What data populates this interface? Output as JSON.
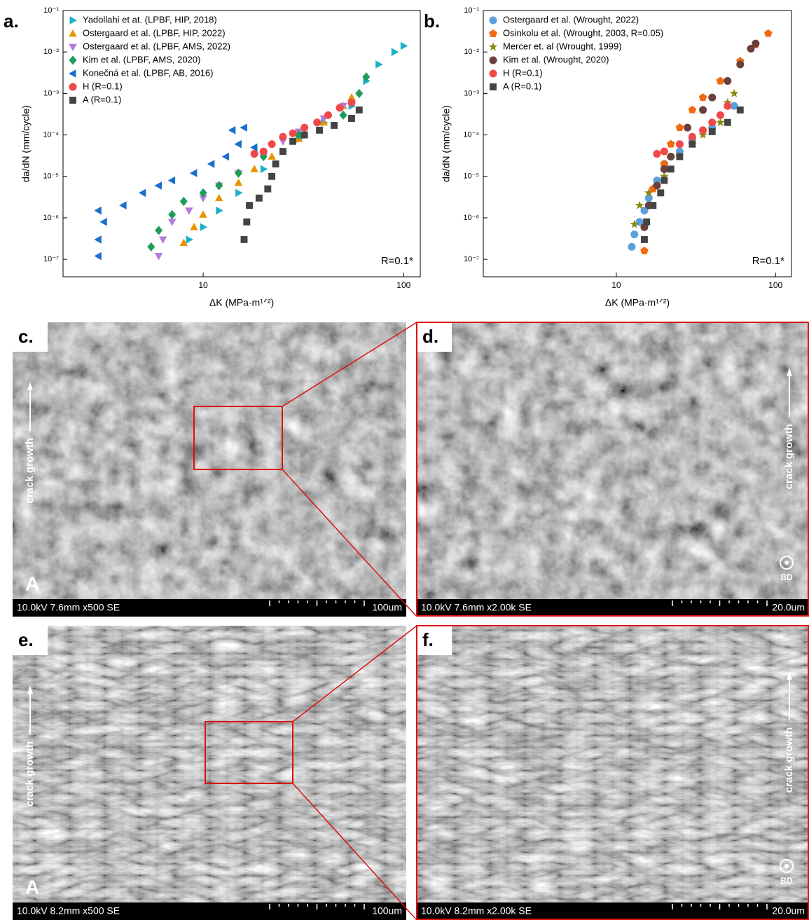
{
  "chart_data": [
    {
      "type": "scatter",
      "panel": "a.",
      "x_label": "ΔK (MPa·m¹ᐟ²)",
      "y_label": "da/dN (mm/cycle)",
      "annotation": "R=0.1*",
      "xscale": "log",
      "yscale": "log",
      "xlim": [
        2.0,
        121
      ],
      "ylim": [
        3.8e-08,
        0.1
      ],
      "xticks": [
        10,
        100
      ],
      "yticks": [
        {
          "value": 1e-07,
          "label": "10⁻⁷"
        },
        {
          "value": 1e-06,
          "label": "10⁻⁶"
        },
        {
          "value": 1e-05,
          "label": "10⁻⁵"
        },
        {
          "value": 0.0001,
          "label": "10⁻⁴"
        },
        {
          "value": 0.001,
          "label": "10⁻³"
        },
        {
          "value": 0.01,
          "label": "10⁻²"
        },
        {
          "value": 0.1,
          "label": "10⁻¹"
        }
      ],
      "legend": "upper left",
      "series": [
        {
          "name": "Yadollahi et at. (LPBF, HIP, 2018)",
          "color": "#1fb0c8",
          "marker": "triangle-right",
          "x": [
            8.5,
            10,
            12,
            15,
            20,
            25,
            30,
            40,
            55,
            65,
            75,
            90,
            100
          ],
          "values": [
            3e-07,
            6e-07,
            1.5e-06,
            4e-06,
            1.5e-05,
            4e-05,
            8e-05,
            0.0002,
            0.0005,
            0.002,
            0.005,
            0.01,
            0.014
          ]
        },
        {
          "name": "Ostergaard et al. (LPBF, HIP, 2022)",
          "color": "#e69500",
          "marker": "triangle-up",
          "x": [
            8,
            9,
            10,
            12,
            15,
            18,
            22,
            30,
            40,
            50,
            55
          ],
          "values": [
            2.5e-07,
            6e-07,
            1.2e-06,
            3e-06,
            7e-06,
            1.5e-05,
            3e-05,
            8e-05,
            0.0002,
            0.0005,
            0.0008
          ]
        },
        {
          "name": "Ostergaard et al. (LPBF, AMS, 2022)",
          "color": "#b57bdc",
          "marker": "triangle-down",
          "x": [
            6,
            6.3,
            7,
            8.5,
            10,
            12,
            15,
            20,
            25,
            30,
            40,
            50
          ],
          "values": [
            1.2e-07,
            3e-07,
            8e-07,
            1.5e-06,
            3e-06,
            6e-06,
            1.2e-05,
            3e-05,
            7e-05,
            0.00012,
            0.00025,
            0.0005
          ]
        },
        {
          "name": "Kim et al. (LPBF, AMS, 2020)",
          "color": "#1e9c5a",
          "marker": "diamond",
          "x": [
            5.5,
            6,
            7,
            8,
            10,
            12,
            15,
            20,
            30,
            50,
            60,
            65
          ],
          "values": [
            2e-07,
            5e-07,
            1.2e-06,
            2.5e-06,
            4e-06,
            6e-06,
            1.2e-05,
            3e-05,
            0.0001,
            0.0003,
            0.001,
            0.0025
          ]
        },
        {
          "name": "Konečná et al. (LPBF, AB, 2016)",
          "color": "#1a6fce",
          "marker": "triangle-left",
          "x": [
            3,
            3,
            3.2,
            3,
            4,
            5,
            6,
            7,
            9,
            11,
            13,
            15,
            16,
            14,
            18
          ],
          "values": [
            1.2e-07,
            3e-07,
            8e-07,
            1.5e-06,
            2e-06,
            4e-06,
            6e-06,
            8e-06,
            1.2e-05,
            2e-05,
            3e-05,
            6e-05,
            0.00015,
            0.00013,
            5e-05
          ]
        },
        {
          "name": "H (R=0.1)",
          "color": "#f04848",
          "marker": "circle",
          "x": [
            18,
            20,
            22,
            25,
            28,
            32,
            37,
            42,
            48,
            55
          ],
          "values": [
            3.5e-05,
            4e-05,
            6e-05,
            9e-05,
            0.00011,
            0.00015,
            0.0002,
            0.0003,
            0.00045,
            0.0006
          ]
        },
        {
          "name": "A (R=0.1)",
          "color": "#444444",
          "marker": "square",
          "x": [
            16,
            16.5,
            17,
            19,
            21,
            22,
            23,
            25,
            28,
            32,
            38,
            45,
            55,
            60
          ],
          "values": [
            3e-07,
            8e-07,
            2e-06,
            3e-06,
            5e-06,
            1e-05,
            2e-05,
            4e-05,
            7e-05,
            0.0001,
            0.00013,
            0.00017,
            0.00025,
            0.0004
          ]
        }
      ]
    },
    {
      "type": "scatter",
      "panel": "b.",
      "x_label": "ΔK (MPa·m¹ᐟ²)",
      "y_label": "da/dN (mm/cycle)",
      "annotation": "R=0.1*",
      "xscale": "log",
      "yscale": "log",
      "xlim": [
        1.46,
        126
      ],
      "ylim": [
        3.8e-08,
        0.1
      ],
      "xticks": [
        10,
        100
      ],
      "yticks": [
        {
          "value": 1e-07,
          "label": "10⁻⁷"
        },
        {
          "value": 1e-06,
          "label": "10⁻⁶"
        },
        {
          "value": 1e-05,
          "label": "10⁻⁵"
        },
        {
          "value": 0.0001,
          "label": "10⁻⁴"
        },
        {
          "value": 0.001,
          "label": "10⁻³"
        },
        {
          "value": 0.01,
          "label": "10⁻²"
        },
        {
          "value": 0.1,
          "label": "10⁻¹"
        }
      ],
      "legend": "upper left",
      "series": [
        {
          "name": "Ostergaard et al. (Wrought, 2022)",
          "color": "#5aa0dc",
          "marker": "circle",
          "x": [
            12.5,
            13,
            14,
            15,
            16,
            18,
            20,
            25,
            30,
            40,
            55
          ],
          "values": [
            2e-07,
            4e-07,
            8e-07,
            1.5e-06,
            3e-06,
            8e-06,
            2e-05,
            4e-05,
            8e-05,
            0.00015,
            0.0005
          ]
        },
        {
          "name": "Osinkolu et al. (Wrought, 2003, R=0.05)",
          "color": "#f26a0f",
          "marker": "pentagon",
          "x": [
            15,
            17,
            20,
            22,
            25,
            30,
            35,
            45,
            60,
            75,
            90
          ],
          "values": [
            1.6e-07,
            5e-06,
            2e-05,
            6e-05,
            0.00015,
            0.0004,
            0.0008,
            0.002,
            0.006,
            0.015,
            0.028
          ]
        },
        {
          "name": "Mercer et. al (Wrought, 1999)",
          "color": "#8a8a10",
          "marker": "star",
          "x": [
            13,
            14,
            16,
            20,
            25,
            30,
            35,
            45,
            50,
            55
          ],
          "values": [
            7e-07,
            2e-06,
            4e-06,
            1e-05,
            3e-05,
            6e-05,
            0.0001,
            0.0002,
            0.0006,
            0.001
          ]
        },
        {
          "name": "Kim et al. (Wrought, 2020)",
          "color": "#6b403a",
          "marker": "circle",
          "x": [
            15,
            16,
            18,
            20,
            22,
            28,
            35,
            40,
            50,
            60,
            70,
            75
          ],
          "values": [
            6e-07,
            2e-06,
            6e-06,
            1.5e-05,
            3e-05,
            0.00015,
            0.0004,
            0.0008,
            0.002,
            0.005,
            0.012,
            0.016
          ]
        },
        {
          "name": "H (R=0.1)",
          "color": "#f04848",
          "marker": "circle",
          "x": [
            18,
            20,
            25,
            30,
            35,
            40,
            45,
            50
          ],
          "values": [
            3.5e-05,
            4e-05,
            6e-05,
            9e-05,
            0.00013,
            0.0002,
            0.0003,
            0.0005
          ]
        },
        {
          "name": "A (R=0.1)",
          "color": "#444444",
          "marker": "square",
          "x": [
            15,
            15.5,
            17,
            19,
            20,
            22,
            25,
            30,
            40,
            50,
            60
          ],
          "values": [
            3e-07,
            8e-07,
            2e-06,
            4e-06,
            8e-06,
            1.5e-05,
            3e-05,
            6e-05,
            0.00012,
            0.0002,
            0.0004
          ]
        }
      ]
    }
  ],
  "images": [
    {
      "label": "c.",
      "sample": "A",
      "direction": "crack growth",
      "info": "10.0kV 7.6mm x500 SE",
      "scale": "100um"
    },
    {
      "label": "d.",
      "direction": "crack growth",
      "build": "BD",
      "info": "10.0kV 7.6mm x2.00k SE",
      "scale": "20.0um"
    },
    {
      "label": "e.",
      "sample": "A",
      "direction": "crack growth",
      "info": "10.0kV 8.2mm x500 SE",
      "scale": "100um"
    },
    {
      "label": "f.",
      "direction": "crack growth",
      "build": "BD",
      "info": "10.0kV 8.2mm x2.00k SE",
      "scale": "20.0um"
    }
  ]
}
